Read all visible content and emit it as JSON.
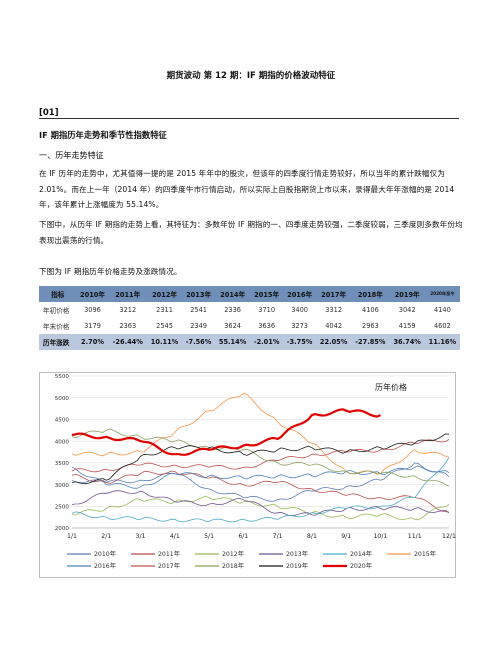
{
  "doc": {
    "title": "期货波动 第 12 期：IF 期指的价格波动特征",
    "section_tag": "[01]",
    "section_heading": "IF 期指历年走势和季节性指数特征",
    "sub_heading": "一、历年走势特征",
    "para1": "在 IF 历年的走势中，尤其值得一提的是 2015 年年中的股灾，但该年的四季度行情走势较好，所以当年的累计跌幅仅为 2.01%。而在上一年（2014 年）的四季度牛市行情启动，所以实际上自股指期货上市以来，录得最大年年涨幅的是 2014 年，该年累计上涨幅度为 55.14%。",
    "para2": "下图中，从历年 IF 期指的走势上看，其特征为：多数年份 IF 期指的一、四季度走势较强，二季度较弱，三季度则多数年份均表现出震荡的行情。",
    "para3": "下图为 IF 期指历年价格走势及涨跌情况。"
  },
  "table": {
    "headers": [
      "指标",
      "2010年",
      "2011年",
      "2012年",
      "2013年",
      "2014年",
      "2015年",
      "2016年",
      "2017年",
      "2018年",
      "2019年",
      "2020年至今"
    ],
    "rows": [
      [
        "年初价格",
        "3096",
        "3212",
        "2311",
        "2541",
        "2336",
        "3710",
        "3400",
        "3312",
        "4106",
        "3042",
        "4140"
      ],
      [
        "年末价格",
        "3179",
        "2363",
        "2545",
        "2349",
        "3624",
        "3636",
        "3273",
        "4042",
        "2963",
        "4159",
        "4602"
      ],
      [
        "历年涨跌",
        "2.70%",
        "-26.44%",
        "10.11%",
        "-7.56%",
        "55.14%",
        "-2.01%",
        "-3.75%",
        "22.05%",
        "-27.85%",
        "36.74%",
        "11.16%"
      ]
    ]
  },
  "chart_data": {
    "type": "line",
    "title": "历年价格",
    "x_ticks": [
      "1/1",
      "2/1",
      "3/1",
      "4/1",
      "5/1",
      "6/1",
      "7/1",
      "8/1",
      "9/1",
      "10/1",
      "11/1",
      "12/1"
    ],
    "y_ticks": [
      2000,
      2500,
      3000,
      3500,
      4000,
      4500,
      5000,
      5500
    ],
    "ylim": [
      2000,
      5500
    ],
    "grid": true,
    "legend_placement": "bottom",
    "series": [
      {
        "name": "2010年",
        "color": "#5b7fb5",
        "values": [
          3096,
          3050,
          3100,
          3250,
          2900,
          2700,
          2650,
          2850,
          2950,
          3100,
          3500,
          3179
        ]
      },
      {
        "name": "2011年",
        "color": "#b5524f",
        "values": [
          3212,
          3050,
          3250,
          3300,
          3150,
          3000,
          3050,
          2900,
          2750,
          2700,
          2700,
          2363
        ]
      },
      {
        "name": "2012年",
        "color": "#9bbb59",
        "values": [
          2311,
          2450,
          2650,
          2600,
          2700,
          2600,
          2500,
          2350,
          2250,
          2300,
          2200,
          2545
        ]
      },
      {
        "name": "2013年",
        "color": "#6e5490",
        "values": [
          2541,
          2800,
          2850,
          2600,
          2550,
          2650,
          2350,
          2300,
          2450,
          2450,
          2450,
          2349
        ]
      },
      {
        "name": "2014年",
        "color": "#4bacc6",
        "values": [
          2336,
          2250,
          2200,
          2200,
          2150,
          2200,
          2200,
          2350,
          2450,
          2500,
          2700,
          3624
        ]
      },
      {
        "name": "2015年",
        "color": "#f79646",
        "values": [
          3710,
          3700,
          3750,
          4200,
          4700,
          5100,
          4450,
          3950,
          3300,
          3250,
          3800,
          3636
        ]
      },
      {
        "name": "2016年",
        "color": "#4f81bd",
        "values": [
          3400,
          3000,
          2950,
          3250,
          3200,
          3150,
          3200,
          3200,
          3300,
          3250,
          3400,
          3273
        ]
      },
      {
        "name": "2017年",
        "color": "#c0504d",
        "values": [
          3312,
          3350,
          3450,
          3450,
          3400,
          3400,
          3550,
          3700,
          3750,
          3800,
          3950,
          4042
        ]
      },
      {
        "name": "2018年",
        "color": "#8aa35f",
        "values": [
          4106,
          4250,
          4100,
          4000,
          3850,
          3800,
          3500,
          3450,
          3300,
          3250,
          3200,
          2963
        ]
      },
      {
        "name": "2019年",
        "color": "#1a1a1a",
        "values": [
          3042,
          3100,
          3650,
          3850,
          3850,
          3700,
          3800,
          3850,
          3750,
          3850,
          3950,
          4159
        ]
      },
      {
        "name": "2020年",
        "color": "#e00000",
        "values": [
          4140,
          4100,
          4000,
          3700,
          3800,
          3900,
          4050,
          4600,
          4700,
          4600
        ]
      }
    ]
  }
}
